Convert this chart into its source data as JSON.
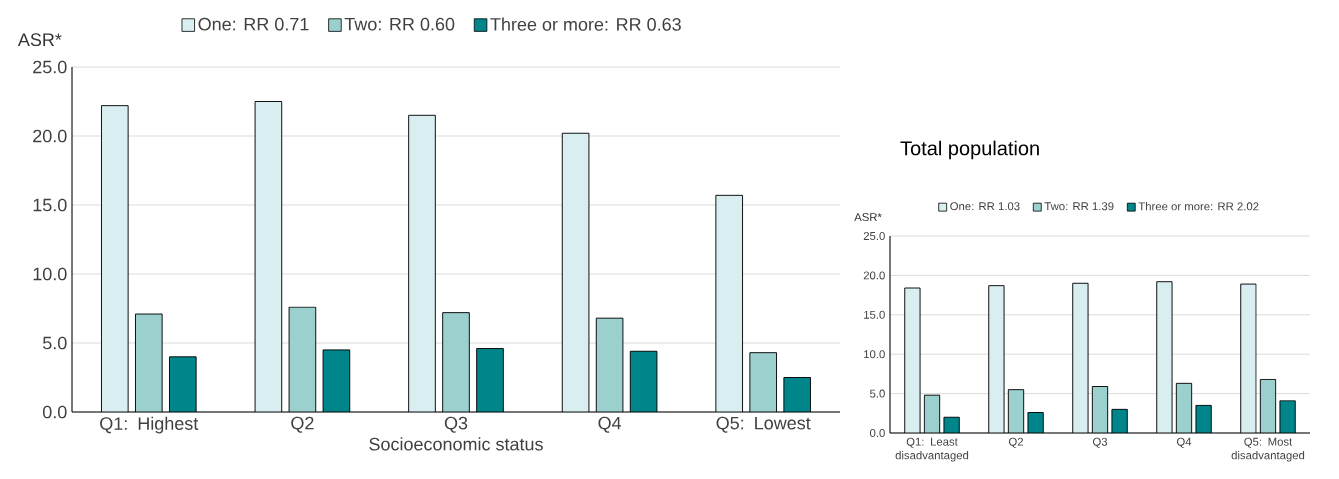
{
  "chart_data": [
    {
      "type": "bar",
      "xlabel": "Socioeconomic status",
      "ylabel": "ASR*",
      "categories": [
        "Q1: Highest",
        "Q2",
        "Q3",
        "Q4",
        "Q5: Lowest"
      ],
      "series": [
        {
          "name": "One: RR 0.71",
          "color": "#d9eef0",
          "values": [
            22.2,
            22.5,
            21.5,
            20.2,
            15.7
          ]
        },
        {
          "name": "Two: RR 0.60",
          "color": "#9bd0cf",
          "values": [
            7.1,
            7.6,
            7.2,
            6.8,
            4.3
          ]
        },
        {
          "name": "Three or more: RR 0.63",
          "color": "#00868a",
          "values": [
            4.0,
            4.5,
            4.6,
            4.4,
            2.5
          ]
        }
      ],
      "ylim": [
        0,
        25
      ],
      "yticks": [
        {
          "value": 0,
          "label": "0.0"
        },
        {
          "value": 5,
          "label": "5.0"
        },
        {
          "value": 10,
          "label": "10.0"
        },
        {
          "value": 15,
          "label": "15.0"
        },
        {
          "value": 20,
          "label": "20.0"
        },
        {
          "value": 25,
          "label": "25.0"
        }
      ],
      "grid": "y",
      "legend": "top"
    },
    {
      "type": "bar",
      "title": "Total population",
      "ylabel": "ASR*",
      "categories": [
        "Q1: Least disadvantaged",
        "Q2",
        "Q3",
        "Q4",
        "Q5: Most disadvantaged"
      ],
      "series": [
        {
          "name": "One: RR 1.03",
          "color": "#d9eef0",
          "values": [
            18.4,
            18.7,
            19.0,
            19.2,
            18.9
          ]
        },
        {
          "name": "Two: RR 1.39",
          "color": "#9bd0cf",
          "values": [
            4.8,
            5.5,
            5.9,
            6.3,
            6.8
          ]
        },
        {
          "name": "Three or more: RR 2.02",
          "color": "#00868a",
          "values": [
            2.0,
            2.6,
            3.0,
            3.5,
            4.1
          ]
        }
      ],
      "ylim": [
        0,
        25
      ],
      "yticks": [
        {
          "value": 0,
          "label": "0.0"
        },
        {
          "value": 5,
          "label": "5.0"
        },
        {
          "value": 10,
          "label": "10.0"
        },
        {
          "value": 15,
          "label": "15.0"
        },
        {
          "value": 20,
          "label": "20.0"
        },
        {
          "value": 25,
          "label": "25.0"
        }
      ],
      "grid": "y",
      "legend": "top"
    }
  ]
}
